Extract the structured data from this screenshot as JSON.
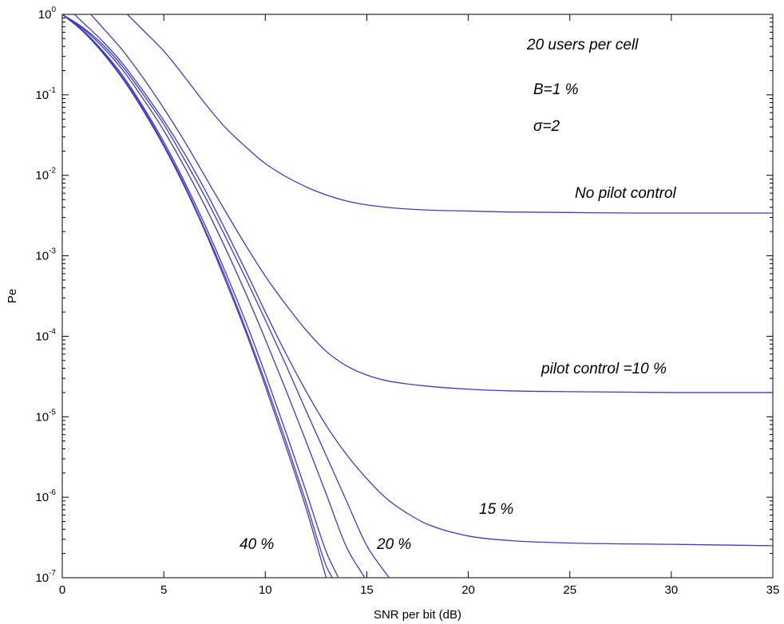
{
  "chart_data": {
    "type": "line",
    "xlabel": "SNR per bit (dB)",
    "ylabel": "Pe",
    "xlim": [
      0,
      35
    ],
    "ylim": [
      1e-07,
      1
    ],
    "yscale": "log",
    "grid": false,
    "line_color": "#3b3bc8",
    "x_ticks": [
      "0",
      "5",
      "10",
      "15",
      "20",
      "25",
      "30",
      "35"
    ],
    "y_ticks": [
      {
        "base": "10",
        "exp": "0",
        "value": 1
      },
      {
        "base": "10",
        "exp": "-1",
        "value": 0.1
      },
      {
        "base": "10",
        "exp": "-2",
        "value": 0.01
      },
      {
        "base": "10",
        "exp": "-3",
        "value": 0.001
      },
      {
        "base": "10",
        "exp": "-4",
        "value": 0.0001
      },
      {
        "base": "10",
        "exp": "-5",
        "value": 1e-05
      },
      {
        "base": "10",
        "exp": "-6",
        "value": 1e-06
      },
      {
        "base": "10",
        "exp": "-7",
        "value": 1e-07
      }
    ],
    "annotations": {
      "users": "20 users per cell",
      "b": "B=1 %",
      "sigma": "σ=2",
      "no_pilot": "No pilot control",
      "pilot10": "pilot control =10 %",
      "pilot15": "15 %",
      "pilot20": "20 %",
      "pilot40": "40 %"
    },
    "series": [
      {
        "x": [
          3.2,
          4,
          5,
          6,
          7,
          8,
          9,
          10,
          12,
          14,
          16,
          18,
          20,
          22,
          25,
          28,
          30,
          35
        ],
        "y": [
          1.0,
          0.63,
          0.35,
          0.17,
          0.08,
          0.04,
          0.023,
          0.014,
          0.0072,
          0.0048,
          0.004,
          0.0037,
          0.0036,
          0.0035,
          0.00345,
          0.0034,
          0.0034,
          0.0034
        ]
      },
      {
        "x": [
          1.4,
          2,
          3,
          4,
          5,
          6,
          7,
          8,
          9,
          10,
          11,
          12,
          13,
          14,
          15,
          16,
          18,
          20,
          22,
          25,
          30,
          35
        ],
        "y": [
          1.0,
          0.68,
          0.35,
          0.16,
          0.068,
          0.027,
          0.01,
          0.0037,
          0.0014,
          0.00056,
          0.00025,
          0.00012,
          6.5e-05,
          4.3e-05,
          3.3e-05,
          2.8e-05,
          2.4e-05,
          2.2e-05,
          2.1e-05,
          2.05e-05,
          2e-05,
          2e-05
        ]
      },
      {
        "x": [
          0.6,
          1,
          2,
          3,
          4,
          5,
          6,
          7,
          8,
          9,
          10,
          11,
          12,
          13,
          14,
          15,
          16,
          17,
          18,
          20,
          22,
          25,
          30,
          35
        ],
        "y": [
          1.0,
          0.8,
          0.46,
          0.24,
          0.11,
          0.048,
          0.019,
          0.0068,
          0.0022,
          0.00068,
          0.0002,
          6.2e-05,
          2.1e-05,
          7.8e-06,
          3.4e-06,
          1.7e-06,
          9.5e-07,
          6.3e-07,
          4.6e-07,
          3.3e-07,
          2.9e-07,
          2.7e-07,
          2.6e-07,
          2.5e-07
        ]
      },
      {
        "x": [
          0,
          1,
          2,
          3,
          4,
          5,
          6,
          7,
          8,
          9,
          10,
          11,
          12,
          13,
          14,
          15,
          16.1
        ],
        "y": [
          1.0,
          0.69,
          0.42,
          0.22,
          0.1,
          0.043,
          0.016,
          0.0056,
          0.0018,
          0.00055,
          0.00016,
          4.5e-05,
          1.2e-05,
          3.3e-06,
          9e-07,
          2.5e-07,
          1e-07
        ]
      },
      {
        "x": [
          0,
          1,
          2,
          3,
          4,
          5,
          6,
          7,
          8,
          9,
          10,
          11,
          12,
          13,
          14,
          14.9
        ],
        "y": [
          1.0,
          0.67,
          0.39,
          0.2,
          0.088,
          0.036,
          0.013,
          0.0043,
          0.0013,
          0.00036,
          9.2e-05,
          2.2e-05,
          5e-06,
          1.1e-06,
          2.4e-07,
          1e-07
        ]
      },
      {
        "x": [
          0,
          1,
          2,
          3,
          4,
          5,
          6,
          7,
          8,
          9,
          10,
          11,
          12,
          13,
          13.6
        ],
        "y": [
          1.0,
          0.64,
          0.35,
          0.17,
          0.07,
          0.026,
          0.0085,
          0.0025,
          0.00066,
          0.00016,
          3.4e-05,
          6.6e-06,
          1.2e-06,
          2.1e-07,
          1e-07
        ]
      },
      {
        "x": [
          0,
          1,
          2,
          3,
          4,
          5,
          6,
          7,
          8,
          9,
          10,
          11,
          12,
          13,
          13.3
        ],
        "y": [
          1.0,
          0.63,
          0.34,
          0.16,
          0.066,
          0.024,
          0.0078,
          0.0022,
          0.00057,
          0.00013,
          2.7e-05,
          5.1e-06,
          8.8e-07,
          1.4e-07,
          1e-07
        ]
      },
      {
        "x": [
          0,
          1,
          2,
          3,
          4,
          5,
          6,
          7,
          8,
          9,
          10,
          11,
          12,
          13
        ],
        "y": [
          1.0,
          0.62,
          0.33,
          0.155,
          0.063,
          0.023,
          0.0074,
          0.0021,
          0.00052,
          0.00012,
          2.4e-05,
          4.4e-06,
          7.4e-07,
          1e-07
        ]
      }
    ]
  }
}
